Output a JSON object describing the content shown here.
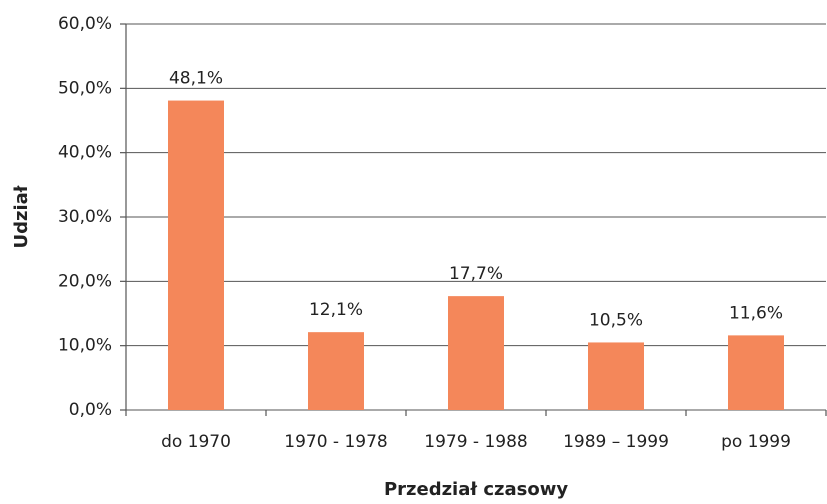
{
  "chart_data": {
    "type": "bar",
    "categories": [
      "do 1970",
      "1970 - 1978",
      "1979 - 1988",
      "1989 – 1999",
      "po 1999"
    ],
    "values": [
      48.1,
      12.1,
      17.7,
      10.5,
      11.6
    ],
    "value_labels": [
      "48,1%",
      "12,1%",
      "17,7%",
      "10,5%",
      "11,6%"
    ],
    "color": "#f4875a",
    "xlabel": "Przedział czasowy",
    "ylabel": "Udział",
    "ylim": [
      0,
      60
    ],
    "yticks": [
      {
        "value": 0,
        "label": "0,0%"
      },
      {
        "value": 10,
        "label": "10,0%"
      },
      {
        "value": 20,
        "label": "20,0%"
      },
      {
        "value": 30,
        "label": "30,0%"
      },
      {
        "value": 40,
        "label": "40,0%"
      },
      {
        "value": 50,
        "label": "50,0%"
      },
      {
        "value": 60,
        "label": "60,0%"
      }
    ],
    "grid": true
  }
}
